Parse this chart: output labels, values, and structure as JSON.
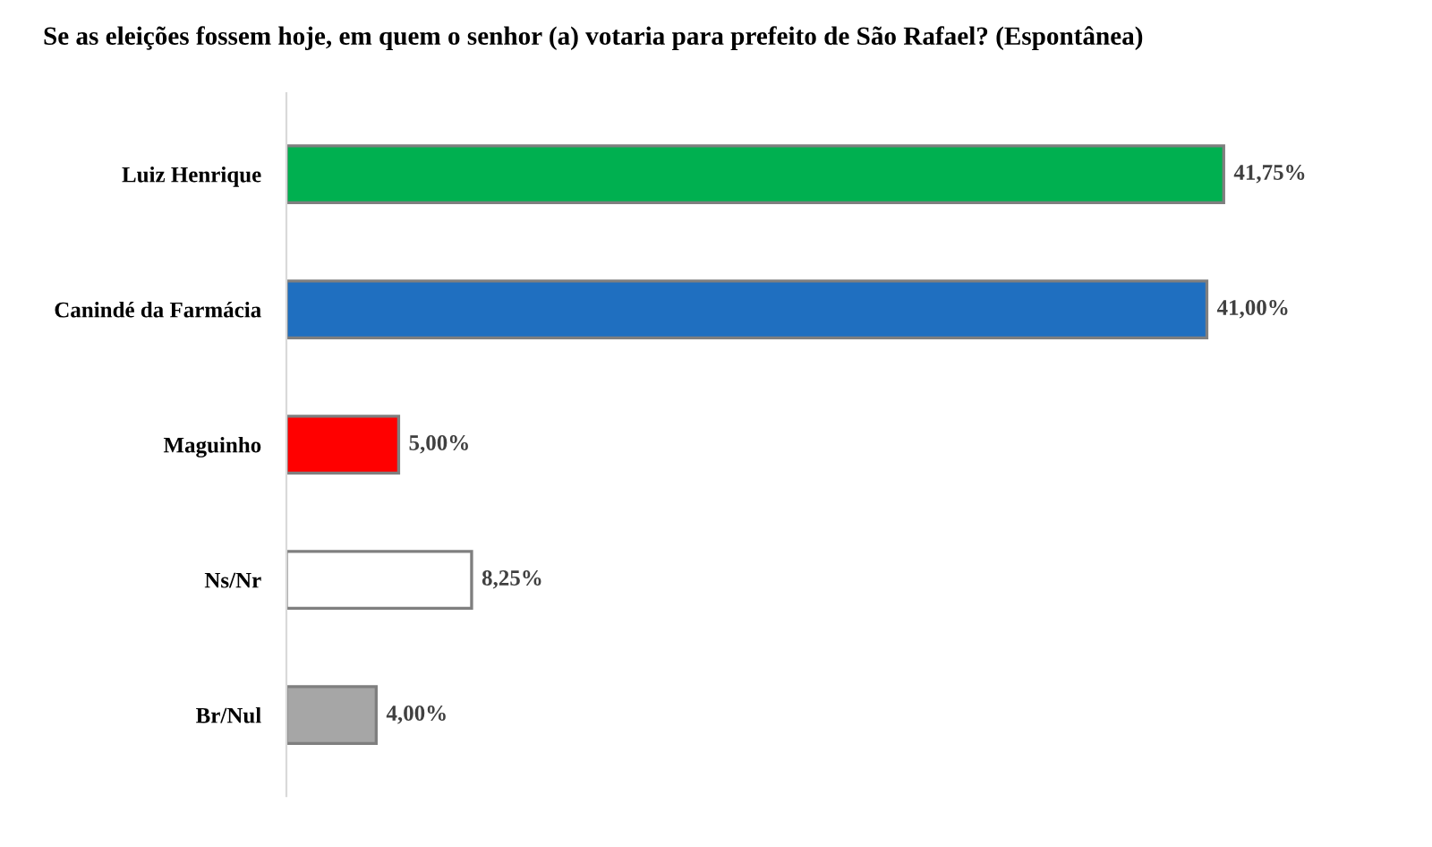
{
  "chart_data": {
    "type": "bar",
    "orientation": "horizontal",
    "title": "Se as eleições fossem hoje, em quem o senhor (a) votaria para prefeito de São Rafael? (Espontânea)",
    "categories": [
      "Luiz Henrique",
      "Canindé da Farmácia",
      "Maguinho",
      "Ns/Nr",
      "Br/Nul"
    ],
    "values": [
      41.75,
      41.0,
      5.0,
      8.25,
      4.0
    ],
    "colors": [
      "#00b050",
      "#1f6fc0",
      "#ff0000",
      "#ffffff",
      "#a6a6a6"
    ],
    "value_labels": [
      "41,75%",
      "41,00%",
      "5,00%",
      "8,25%",
      "4,00%"
    ],
    "grid": false,
    "legend": false
  }
}
